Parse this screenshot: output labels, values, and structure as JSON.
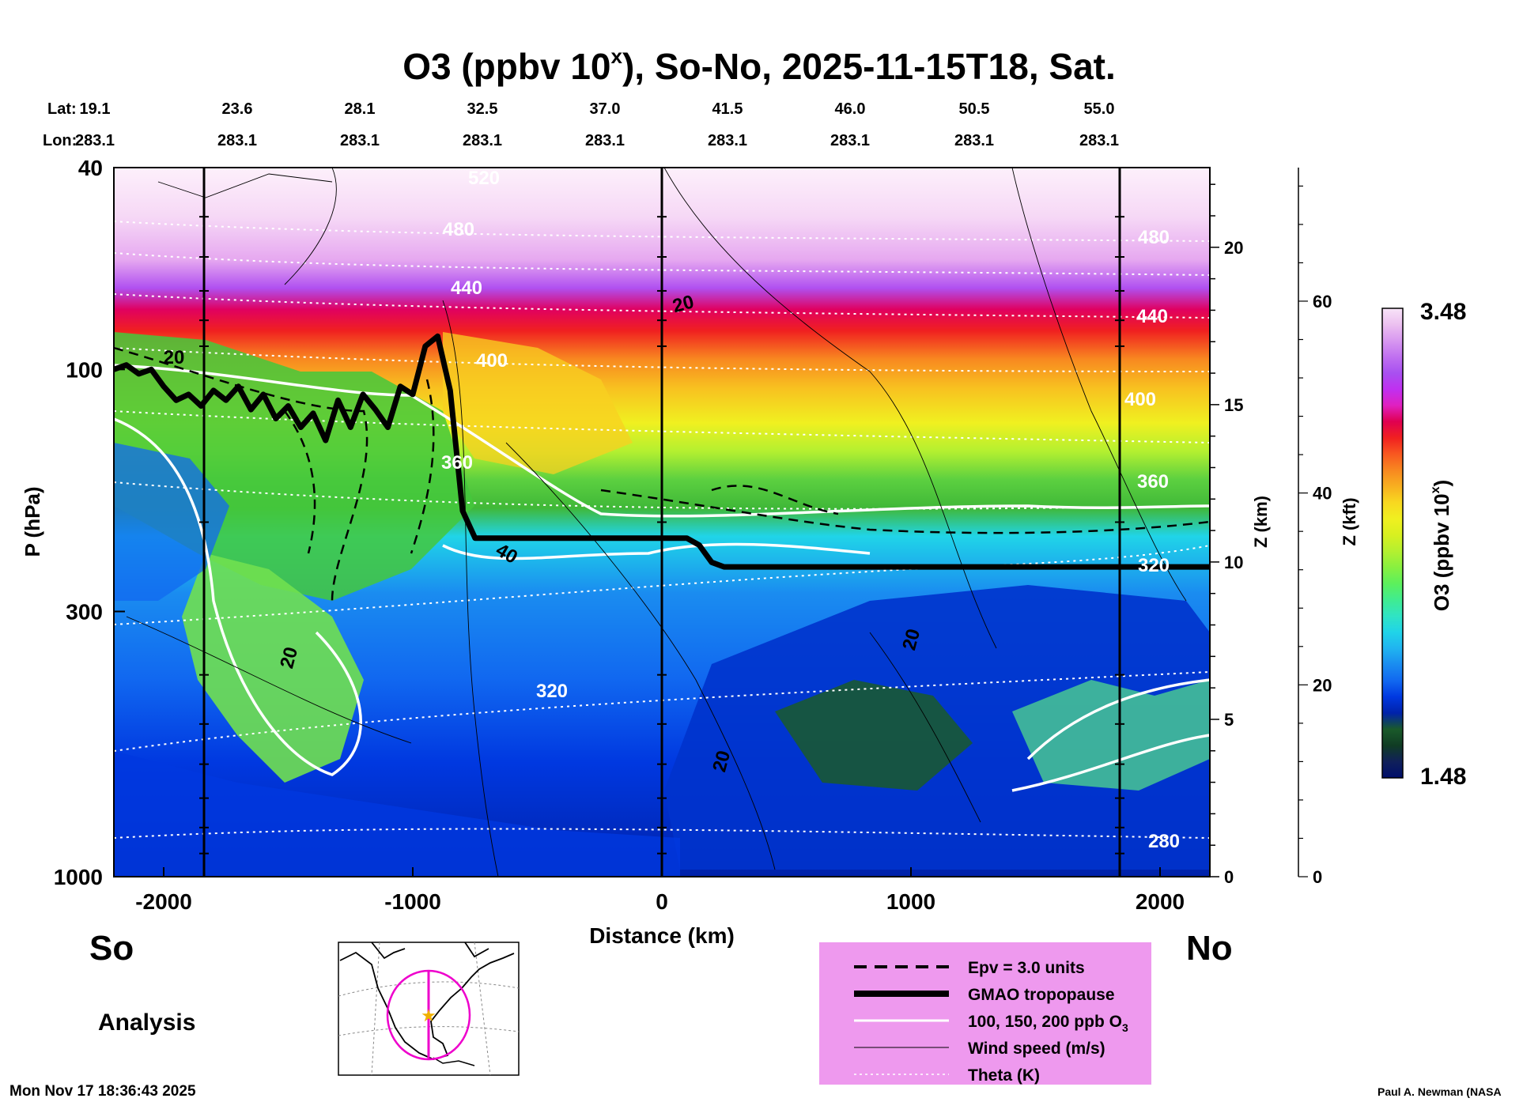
{
  "chart_data": {
    "type": "contour-cross-section",
    "title_main": "O3 (ppbv 10",
    "title_sup": "x",
    "title_rest": "), So-No, 2025-11-15T18, Sat.",
    "lat_label": "Lat:",
    "lon_label": "Lon:",
    "lat_values": [
      "19.1",
      "23.6",
      "28.1",
      "32.5",
      "37.0",
      "41.5",
      "46.0",
      "50.5",
      "55.0"
    ],
    "lon_values": [
      "283.1",
      "283.1",
      "283.1",
      "283.1",
      "283.1",
      "283.1",
      "283.1",
      "283.1",
      "283.1"
    ],
    "x_label": "Distance (km)",
    "x_range": [
      -2200,
      2200
    ],
    "x_ticks": [
      -2000,
      -1000,
      0,
      1000,
      2000
    ],
    "x_tick_labels": [
      "-2000",
      "-1000",
      "0",
      "1000",
      "2000"
    ],
    "y_label": "P (hPa)",
    "y_range_hpa": [
      1000,
      40
    ],
    "y_ticks_hpa": [
      40,
      100,
      300,
      1000
    ],
    "y_tick_labels": [
      "40",
      "100",
      "300",
      "1000"
    ],
    "z_km_label": "Z (km)",
    "z_km_ticks": [
      0,
      5,
      10,
      15,
      20
    ],
    "z_km_tick_labels": [
      "0",
      "5",
      "10",
      "15",
      "20"
    ],
    "z_kft_label": "Z (kft)",
    "z_kft_ticks": [
      0,
      20,
      40,
      60
    ],
    "z_kft_tick_labels": [
      "0",
      "20",
      "40",
      "60"
    ],
    "colorbar_label": "O3 (ppbv 10",
    "colorbar_sup": "x",
    "colorbar_close": ")",
    "colorbar_range": [
      1.48,
      3.48
    ],
    "colorbar_max_label": "3.48",
    "colorbar_min_label": "1.48",
    "colorbar_colors": [
      "#000e6b",
      "#10205a",
      "#103c24",
      "#1a5a2a",
      "#0022aa",
      "#0038e0",
      "#1168f0",
      "#1a8cf0",
      "#20b4f0",
      "#20d4e8",
      "#30e4c4",
      "#40ec90",
      "#5cf05c",
      "#88f040",
      "#b4f030",
      "#d8f020",
      "#f0f020",
      "#f8d820",
      "#f8b020",
      "#f88820",
      "#f85820",
      "#f02020",
      "#e00050",
      "#e020c0",
      "#c030f0",
      "#a850f0",
      "#c070f0",
      "#d898f0",
      "#ecc0f0",
      "#f8e4f8"
    ],
    "theta_labels": [
      "520",
      "480",
      "440",
      "400",
      "360",
      "320",
      "280",
      "480",
      "440",
      "400",
      "360",
      "320"
    ],
    "wind_labels": [
      "20",
      "20",
      "20",
      "20",
      "20",
      "40"
    ],
    "side_left": "So",
    "side_right": "No",
    "analysis_label": "Analysis",
    "legend": [
      {
        "label": "Epv = 3.0 units",
        "style": "dashed"
      },
      {
        "label": "GMAO tropopause",
        "style": "thick"
      },
      {
        "label": "100, 150, 200 ppb O",
        "sub": "3",
        "style": "white"
      },
      {
        "label": "Wind speed (m/s)",
        "style": "thin"
      },
      {
        "label": "Theta (K)",
        "style": "dotted"
      }
    ],
    "tropopause_hpa": [
      [
        -2200,
        100
      ],
      [
        -2150,
        98
      ],
      [
        -2100,
        102
      ],
      [
        -2050,
        100
      ],
      [
        -2000,
        108
      ],
      [
        -1950,
        115
      ],
      [
        -1900,
        112
      ],
      [
        -1850,
        118
      ],
      [
        -1800,
        110
      ],
      [
        -1750,
        115
      ],
      [
        -1700,
        108
      ],
      [
        -1650,
        120
      ],
      [
        -1600,
        112
      ],
      [
        -1550,
        125
      ],
      [
        -1500,
        118
      ],
      [
        -1450,
        130
      ],
      [
        -1400,
        122
      ],
      [
        -1350,
        138
      ],
      [
        -1300,
        115
      ],
      [
        -1250,
        130
      ],
      [
        -1200,
        112
      ],
      [
        -1150,
        120
      ],
      [
        -1100,
        130
      ],
      [
        -1050,
        108
      ],
      [
        -1000,
        112
      ],
      [
        -950,
        90
      ],
      [
        -900,
        86
      ],
      [
        -850,
        110
      ],
      [
        -800,
        190
      ],
      [
        -750,
        215
      ],
      [
        -600,
        215
      ],
      [
        -400,
        215
      ],
      [
        -200,
        215
      ],
      [
        100,
        215
      ],
      [
        150,
        222
      ],
      [
        200,
        240
      ],
      [
        250,
        245
      ],
      [
        500,
        245
      ],
      [
        1000,
        245
      ],
      [
        1500,
        245
      ],
      [
        2000,
        245
      ],
      [
        2200,
        245
      ]
    ],
    "colors": {
      "background": "#ffffff",
      "axes": "#000000",
      "tropopause": "#000000",
      "legend_bg": "#ee99ee",
      "map_circle": "#ee00cc",
      "map_star": "#f0b000"
    }
  },
  "footer": {
    "timestamp": "Mon Nov 17 18:36:43 2025",
    "credit": "Paul A. Newman (NASA"
  }
}
